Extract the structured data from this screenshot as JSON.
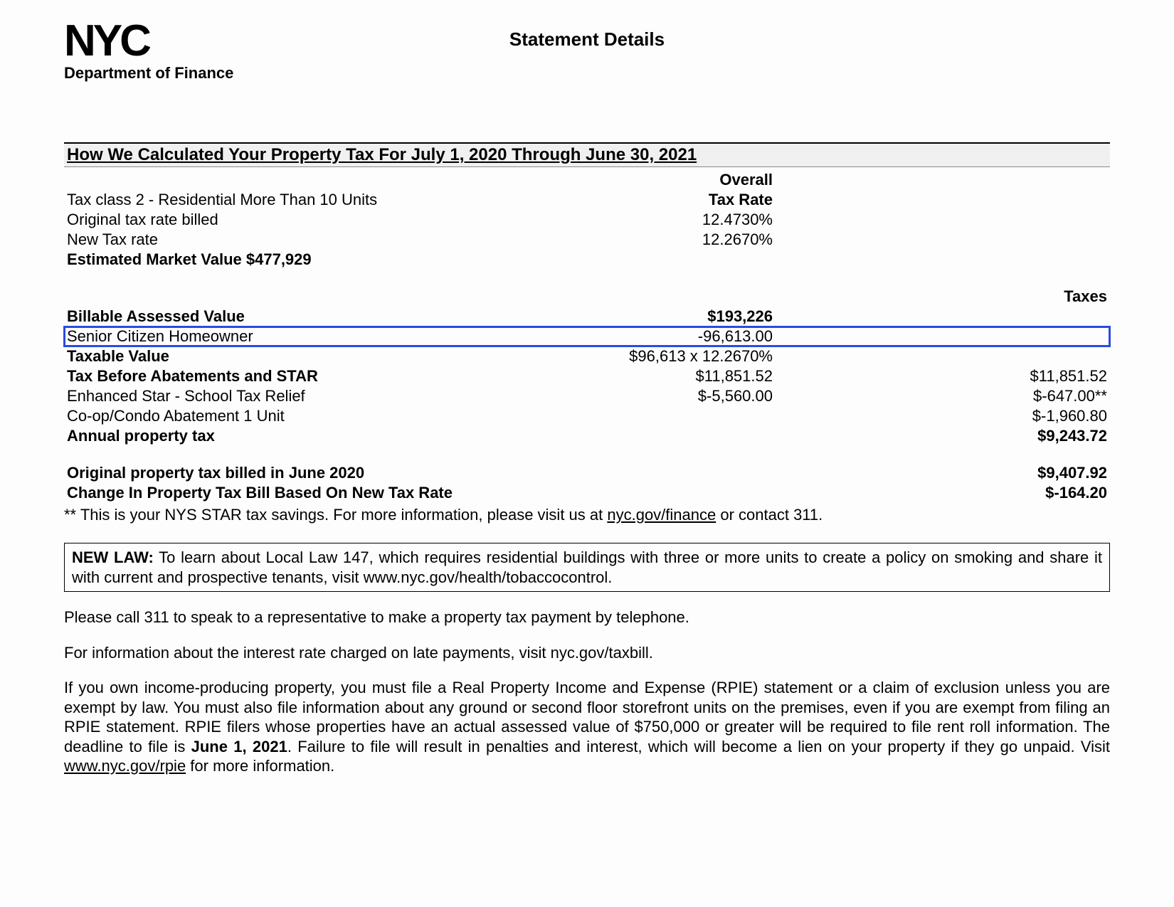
{
  "header": {
    "logo_text": "NYC",
    "department": "Department of Finance",
    "title": "Statement Details"
  },
  "section_title": "How We Calculated Your Property Tax For July 1, 2020 Through June 30, 2021",
  "col_headers": {
    "overall": "Overall",
    "tax_rate": "Tax Rate",
    "taxes": "Taxes"
  },
  "rows": {
    "tax_class": {
      "label": "Tax class   2 -  Residential More Than 10 Units"
    },
    "orig_rate": {
      "label": "Original tax rate billed",
      "mid": "12.4730%"
    },
    "new_rate": {
      "label": "New Tax rate",
      "mid": "12.2670%"
    },
    "emv": {
      "label": "Estimated Market Value   $477,929"
    },
    "bav": {
      "label": "Billable Assessed Value",
      "mid": "$193,226"
    },
    "sch": {
      "label": "Senior Citizen Homeowner",
      "mid": "-96,613.00"
    },
    "tv": {
      "label": "Taxable Value",
      "mid": "$96,613 x 12.2670%"
    },
    "tba": {
      "label": "Tax Before Abatements and STAR",
      "mid": "$11,851.52",
      "right": "$11,851.52"
    },
    "estar": {
      "label": "Enhanced Star - School Tax Relief",
      "mid": "$-5,560.00",
      "right": "$-647.00**"
    },
    "coop": {
      "label": "Co-op/Condo Abatement  1 Unit",
      "right": "$-1,960.80"
    },
    "apt": {
      "label": "Annual property tax",
      "right": "$9,243.72"
    },
    "orig_bill": {
      "label": "Original property tax billed in June 2020",
      "right": "$9,407.92"
    },
    "change": {
      "label": "Change In Property Tax Bill Based On New Tax Rate",
      "right": "$-164.20"
    }
  },
  "footnote": {
    "pre": "** This is your NYS STAR tax savings.  For more information, please visit us at ",
    "link": "nyc.gov/finance",
    "post": " or contact 311."
  },
  "law_box": {
    "lead": "NEW LAW:",
    "body": "  To learn about Local Law 147, which requires residential buildings with three or more units to create a policy on smoking and share it with current and prospective tenants, visit www.nyc.gov/health/tobaccocontrol."
  },
  "paragraphs": {
    "p1": "Please call 311 to speak to a representative to make a property tax payment by telephone.",
    "p2": "For information about the interest rate charged on late payments, visit nyc.gov/taxbill.",
    "p3a": "If you own income-producing property, you must file a Real Property Income and Expense (RPIE) statement or a claim of exclusion unless you are exempt by law.  You must also file information about any ground or second floor storefront units on the premises, even if you are exempt from filing an RPIE statement.  RPIE filers whose properties have an actual assessed value of $750,000 or greater will be required to file rent roll information. The deadline to file is ",
    "p3_date": "June 1, 2021",
    "p3b": ". Failure to file will result in penalties and interest, which will become a lien on your property if they go unpaid. Visit ",
    "p3_link": "www.nyc.gov/rpie",
    "p3c": " for more information."
  },
  "style": {
    "highlight_border_color": "#2a4be0",
    "background_color": "#fdfdfd",
    "font_family": "Arial",
    "body_font_size_pt": 16
  }
}
